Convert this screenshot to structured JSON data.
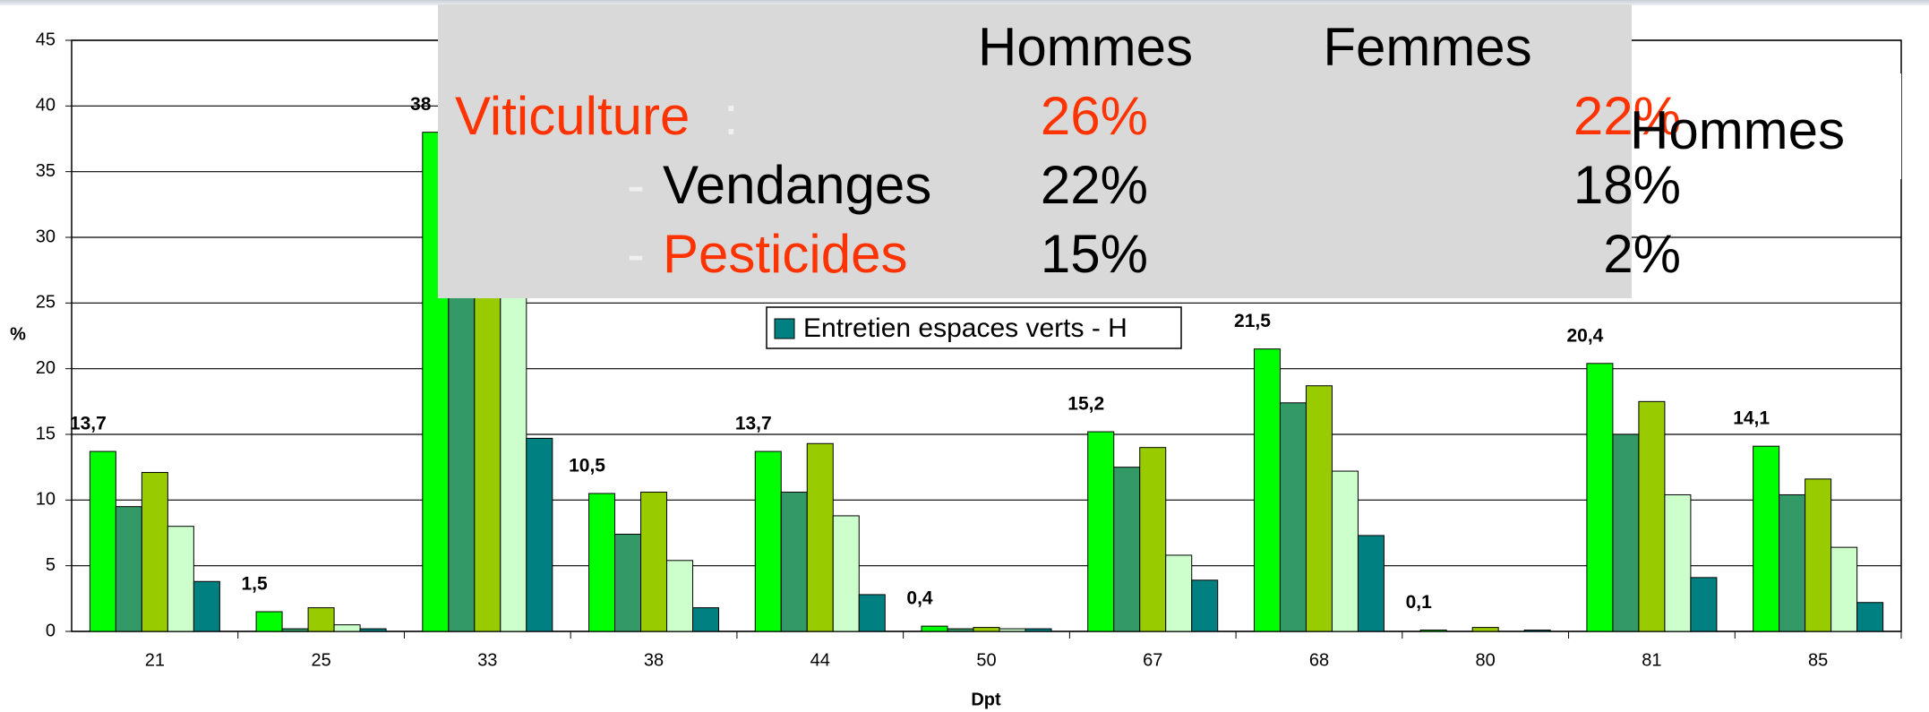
{
  "chart_data": {
    "type": "bar",
    "categories": [
      "21",
      "25",
      "33",
      "38",
      "44",
      "50",
      "67",
      "68",
      "80",
      "81",
      "85"
    ],
    "series": [
      {
        "color": "#00ff00",
        "values": [
          13.7,
          1.5,
          38,
          10.5,
          13.7,
          0.4,
          15.2,
          21.5,
          0.1,
          20.4,
          14.1
        ],
        "value_labels": [
          "13,7",
          "1,5",
          "38",
          "10,5",
          "13,7",
          "0,4",
          "15,2",
          "21,5",
          "0,1",
          "20,4",
          "14,1"
        ]
      },
      {
        "color": "#339966",
        "values": [
          9.5,
          0.2,
          33,
          7.4,
          10.6,
          0.2,
          12.5,
          17.4,
          0,
          15,
          10.4
        ]
      },
      {
        "color": "#99cc00",
        "values": [
          12.1,
          1.8,
          35,
          10.6,
          14.3,
          0.3,
          14,
          18.7,
          0.3,
          17.5,
          11.6
        ]
      },
      {
        "color": "#ccffcc",
        "values": [
          8,
          0.5,
          30,
          5.4,
          8.8,
          0.2,
          5.8,
          12.2,
          0,
          10.4,
          6.4
        ]
      },
      {
        "name": "Entretien espaces verts - H",
        "color": "#008080",
        "values": [
          3.8,
          0.2,
          14.7,
          1.8,
          2.8,
          0.2,
          3.9,
          7.3,
          0.1,
          4.1,
          2.2
        ]
      }
    ],
    "x_label": "Dpt",
    "y_label": "%",
    "ylim": [
      0,
      45
    ],
    "yticks": [
      0,
      5,
      10,
      15,
      20,
      25,
      30,
      35,
      40,
      45
    ],
    "grid": true
  },
  "overlay": {
    "headers": [
      "Hommes",
      "Femmes"
    ],
    "rows": [
      {
        "label": "Viticulture",
        "suffix": ":",
        "hommes": "26%",
        "femmes": "22%"
      },
      {
        "dash": "-",
        "label": "Vendanges",
        "hommes": "22%",
        "femmes": "18%"
      },
      {
        "dash": "-",
        "label": "Pesticides",
        "hommes": "15%",
        "femmes": "2%"
      }
    ],
    "side_text": "Hommes"
  }
}
